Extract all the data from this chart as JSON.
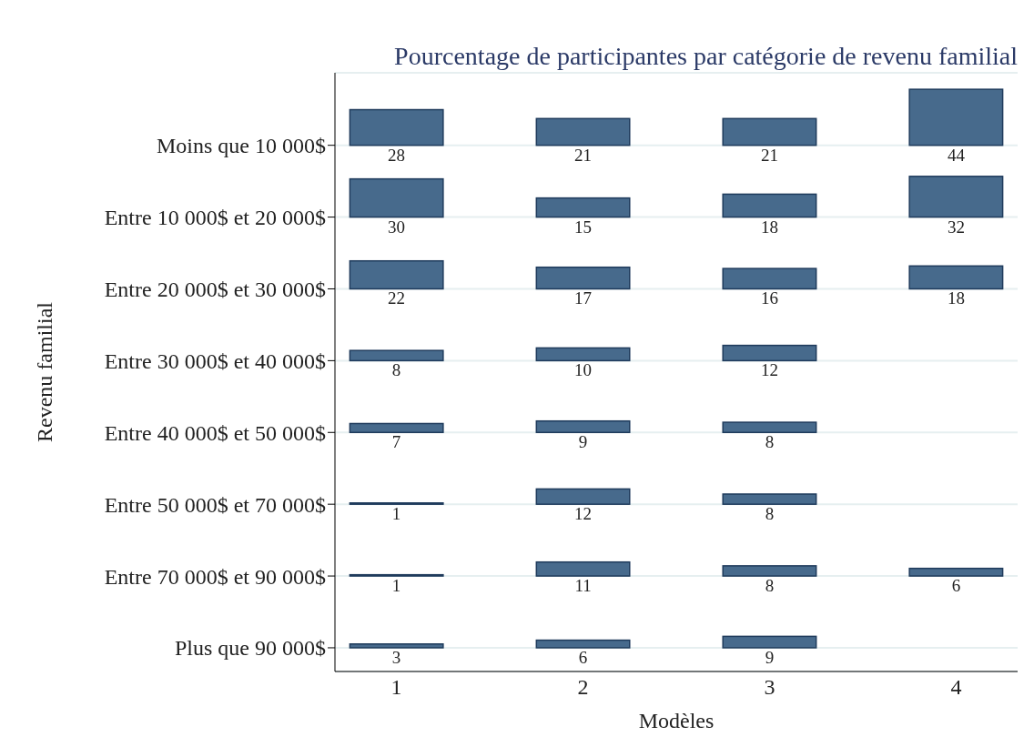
{
  "chart_data": {
    "type": "heatmap",
    "title": "Pourcentage de participantes par catégorie de revenu familial",
    "xlabel": "Modèles",
    "ylabel": "Revenu familial",
    "categories": [
      "1",
      "2",
      "3",
      "4"
    ],
    "y_categories": [
      "Moins que 10 000$",
      "Entre 10 000$ et 20 000$",
      "Entre 20 000$ et 30 000$",
      "Entre 30 000$ et 40 000$",
      "Entre 40 000$ et 50 000$",
      "Entre 50 000$ et 70 000$",
      "Entre 70 000$ et 90 000$",
      "Plus que 90 000$"
    ],
    "cells": [
      [
        28,
        21,
        21,
        44
      ],
      [
        30,
        15,
        18,
        32
      ],
      [
        22,
        17,
        16,
        18
      ],
      [
        8,
        10,
        12,
        null
      ],
      [
        7,
        9,
        8,
        null
      ],
      [
        1,
        12,
        8,
        null
      ],
      [
        1,
        11,
        8,
        6
      ],
      [
        3,
        6,
        9,
        null
      ]
    ],
    "color": "#476a8c",
    "data_labels": true,
    "grid": "y"
  }
}
